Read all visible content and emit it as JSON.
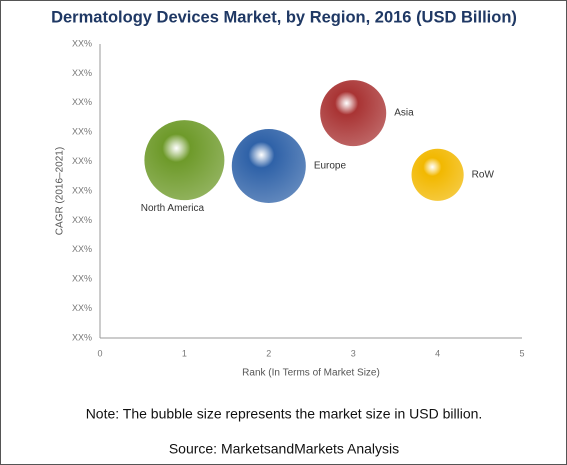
{
  "chart_data": {
    "type": "bubble",
    "title": "Dermatology Devices Market, by Region, 2016 (USD Billion)",
    "x_label": "Rank (In Terms of Market Size)",
    "y_label": "CAGR (2016–2021)",
    "note": "Note: The bubble size represents the market size in USD billion.",
    "source": "Source: MarketsandMarkets Analysis",
    "xlim": [
      0,
      5
    ],
    "xticks": [
      0,
      1,
      2,
      3,
      4,
      5
    ],
    "ylim": [
      0,
      10
    ],
    "yticks": [
      {
        "value": 0,
        "label": "XX%"
      },
      {
        "value": 1,
        "label": "XX%"
      },
      {
        "value": 2,
        "label": "XX%"
      },
      {
        "value": 3,
        "label": "XX%"
      },
      {
        "value": 4,
        "label": "XX%"
      },
      {
        "value": 5,
        "label": "XX%"
      },
      {
        "value": 6,
        "label": "XX%"
      },
      {
        "value": 7,
        "label": "XX%"
      },
      {
        "value": 8,
        "label": "XX%"
      },
      {
        "value": 9,
        "label": "XX%"
      },
      {
        "value": 10,
        "label": "XX%"
      }
    ],
    "series": [
      {
        "name": "North America",
        "color": "#6e9a2a",
        "x": [
          1
        ],
        "values": [
          6.05
        ],
        "sizes": [
          16
        ]
      },
      {
        "name": "Europe",
        "color": "#2f62a8",
        "x": [
          2
        ],
        "values": [
          5.85
        ],
        "sizes": [
          13.7
        ]
      },
      {
        "name": "Asia",
        "color": "#a93434",
        "x": [
          3
        ],
        "values": [
          7.65
        ],
        "sizes": [
          10.9
        ]
      },
      {
        "name": "RoW",
        "color": "#f2b800",
        "x": [
          4
        ],
        "values": [
          5.55
        ],
        "sizes": [
          6.8
        ]
      }
    ]
  }
}
